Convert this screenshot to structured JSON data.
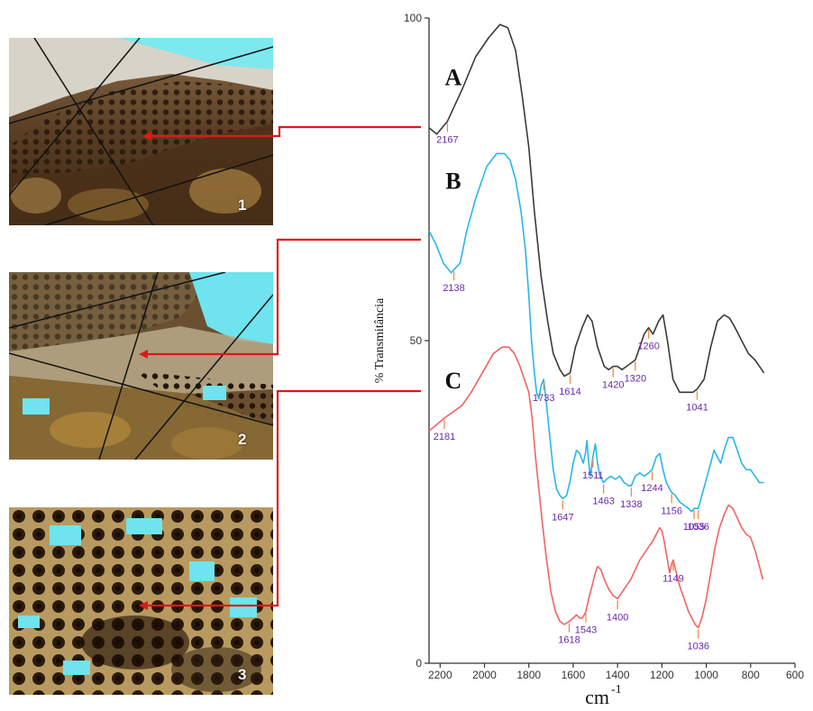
{
  "photos": [
    {
      "number": "1"
    },
    {
      "number": "2"
    },
    {
      "number": "3"
    }
  ],
  "chart_data": {
    "type": "line",
    "title": "",
    "xlabel": "cm",
    "xlabel_exponent": "-1",
    "ylabel": "% Transmitância",
    "xlim": [
      2250,
      600
    ],
    "ylim": [
      0,
      100
    ],
    "x_ticks": [
      2200,
      2000,
      1800,
      1600,
      1400,
      1200,
      1000,
      800,
      600
    ],
    "y_ticks": [
      0,
      50,
      100
    ],
    "grid": false,
    "legend": "none",
    "series": [
      {
        "name": "A",
        "color": "#3a3a3a",
        "points": [
          [
            2250,
            83
          ],
          [
            2215,
            82
          ],
          [
            2167,
            84
          ],
          [
            2100,
            89
          ],
          [
            2040,
            94
          ],
          [
            1980,
            97
          ],
          [
            1930,
            99
          ],
          [
            1895,
            98.5
          ],
          [
            1860,
            95
          ],
          [
            1830,
            88
          ],
          [
            1800,
            80
          ],
          [
            1775,
            70
          ],
          [
            1745,
            60
          ],
          [
            1715,
            53
          ],
          [
            1690,
            48
          ],
          [
            1660,
            45.5
          ],
          [
            1640,
            44.5
          ],
          [
            1614,
            45
          ],
          [
            1590,
            49
          ],
          [
            1560,
            52
          ],
          [
            1535,
            54
          ],
          [
            1515,
            53
          ],
          [
            1490,
            49
          ],
          [
            1460,
            46
          ],
          [
            1440,
            45.5
          ],
          [
            1420,
            46
          ],
          [
            1400,
            46
          ],
          [
            1380,
            45.5
          ],
          [
            1360,
            46
          ],
          [
            1320,
            47
          ],
          [
            1300,
            49
          ],
          [
            1280,
            51
          ],
          [
            1260,
            52
          ],
          [
            1240,
            51
          ],
          [
            1215,
            53
          ],
          [
            1195,
            54
          ],
          [
            1175,
            50
          ],
          [
            1150,
            44
          ],
          [
            1120,
            42
          ],
          [
            1090,
            42
          ],
          [
            1060,
            42
          ],
          [
            1041,
            42.5
          ],
          [
            1010,
            44
          ],
          [
            980,
            49
          ],
          [
            950,
            53
          ],
          [
            920,
            54
          ],
          [
            895,
            53.5
          ],
          [
            870,
            52
          ],
          [
            840,
            50
          ],
          [
            810,
            48
          ],
          [
            780,
            47
          ],
          [
            760,
            46
          ],
          [
            740,
            45
          ]
        ]
      },
      {
        "name": "B",
        "color": "#29b6e8",
        "points": [
          [
            2250,
            67
          ],
          [
            2220,
            65
          ],
          [
            2185,
            62
          ],
          [
            2150,
            60.5
          ],
          [
            2138,
            61
          ],
          [
            2110,
            62
          ],
          [
            2080,
            67
          ],
          [
            2040,
            72
          ],
          [
            1990,
            77
          ],
          [
            1945,
            79
          ],
          [
            1910,
            79
          ],
          [
            1885,
            78
          ],
          [
            1860,
            75
          ],
          [
            1835,
            70
          ],
          [
            1815,
            64
          ],
          [
            1800,
            57
          ],
          [
            1788,
            50
          ],
          [
            1775,
            45
          ],
          [
            1765,
            42
          ],
          [
            1755,
            41
          ],
          [
            1745,
            43
          ],
          [
            1733,
            44
          ],
          [
            1720,
            40
          ],
          [
            1705,
            35
          ],
          [
            1690,
            30
          ],
          [
            1675,
            27
          ],
          [
            1660,
            26
          ],
          [
            1647,
            25.5
          ],
          [
            1630,
            26
          ],
          [
            1615,
            28
          ],
          [
            1600,
            31
          ],
          [
            1585,
            33
          ],
          [
            1570,
            32.5
          ],
          [
            1555,
            31
          ],
          [
            1545,
            32.5
          ],
          [
            1538,
            34.5
          ],
          [
            1530,
            31
          ],
          [
            1522,
            29
          ],
          [
            1511,
            32
          ],
          [
            1500,
            34
          ],
          [
            1490,
            31
          ],
          [
            1480,
            29
          ],
          [
            1463,
            28
          ],
          [
            1450,
            28.5
          ],
          [
            1430,
            29
          ],
          [
            1410,
            28.5
          ],
          [
            1390,
            29
          ],
          [
            1370,
            28
          ],
          [
            1350,
            27.5
          ],
          [
            1338,
            27.5
          ],
          [
            1320,
            29
          ],
          [
            1300,
            29.5
          ],
          [
            1280,
            29
          ],
          [
            1260,
            29.5
          ],
          [
            1244,
            30
          ],
          [
            1225,
            32
          ],
          [
            1210,
            32.5
          ],
          [
            1195,
            30
          ],
          [
            1180,
            28
          ],
          [
            1165,
            27
          ],
          [
            1156,
            26.5
          ],
          [
            1140,
            26
          ],
          [
            1120,
            25
          ],
          [
            1100,
            24.5
          ],
          [
            1080,
            24
          ],
          [
            1065,
            23.5
          ],
          [
            1055,
            24
          ],
          [
            1045,
            24
          ],
          [
            1036,
            24
          ],
          [
            1020,
            26
          ],
          [
            1000,
            28.5
          ],
          [
            980,
            31
          ],
          [
            965,
            33
          ],
          [
            950,
            32
          ],
          [
            935,
            31
          ],
          [
            920,
            33
          ],
          [
            900,
            35
          ],
          [
            880,
            35
          ],
          [
            860,
            33
          ],
          [
            840,
            31
          ],
          [
            820,
            30
          ],
          [
            800,
            30
          ],
          [
            780,
            29
          ],
          [
            760,
            28
          ],
          [
            740,
            28
          ]
        ]
      },
      {
        "name": "C",
        "color": "#f06464",
        "points": [
          [
            2250,
            36
          ],
          [
            2215,
            37
          ],
          [
            2181,
            38
          ],
          [
            2140,
            39
          ],
          [
            2100,
            40
          ],
          [
            2060,
            42
          ],
          [
            2010,
            45
          ],
          [
            1960,
            48
          ],
          [
            1920,
            49
          ],
          [
            1890,
            49
          ],
          [
            1865,
            48
          ],
          [
            1840,
            46
          ],
          [
            1820,
            44
          ],
          [
            1800,
            42
          ],
          [
            1785,
            38
          ],
          [
            1770,
            32
          ],
          [
            1755,
            27
          ],
          [
            1740,
            22
          ],
          [
            1720,
            16
          ],
          [
            1700,
            11
          ],
          [
            1680,
            8
          ],
          [
            1660,
            6.5
          ],
          [
            1640,
            6
          ],
          [
            1618,
            6.5
          ],
          [
            1600,
            7
          ],
          [
            1585,
            7.5
          ],
          [
            1570,
            7
          ],
          [
            1560,
            7
          ],
          [
            1550,
            7.5
          ],
          [
            1543,
            8
          ],
          [
            1530,
            10
          ],
          [
            1515,
            12
          ],
          [
            1500,
            14
          ],
          [
            1490,
            15
          ],
          [
            1475,
            14.5
          ],
          [
            1460,
            13
          ],
          [
            1440,
            11.5
          ],
          [
            1420,
            10.5
          ],
          [
            1400,
            10
          ],
          [
            1380,
            11
          ],
          [
            1360,
            12
          ],
          [
            1340,
            13
          ],
          [
            1320,
            14.5
          ],
          [
            1300,
            16
          ],
          [
            1280,
            17
          ],
          [
            1260,
            18
          ],
          [
            1240,
            19
          ],
          [
            1225,
            20
          ],
          [
            1210,
            21
          ],
          [
            1200,
            20.5
          ],
          [
            1190,
            19
          ],
          [
            1175,
            16
          ],
          [
            1165,
            14
          ],
          [
            1155,
            15.5
          ],
          [
            1149,
            16
          ],
          [
            1135,
            14
          ],
          [
            1120,
            12
          ],
          [
            1100,
            10
          ],
          [
            1080,
            8
          ],
          [
            1065,
            7
          ],
          [
            1050,
            6
          ],
          [
            1036,
            5.5
          ],
          [
            1020,
            7
          ],
          [
            1000,
            10
          ],
          [
            980,
            14
          ],
          [
            960,
            18
          ],
          [
            940,
            21
          ],
          [
            920,
            23
          ],
          [
            900,
            24.5
          ],
          [
            880,
            24
          ],
          [
            860,
            22.5
          ],
          [
            840,
            21
          ],
          [
            820,
            20
          ],
          [
            800,
            19.5
          ],
          [
            780,
            17.5
          ],
          [
            760,
            15
          ],
          [
            745,
            13
          ]
        ]
      }
    ],
    "series_labels": [
      {
        "text": "A",
        "series": "A"
      },
      {
        "text": "B",
        "series": "B"
      },
      {
        "text": "C",
        "series": "C"
      }
    ],
    "annotations": [
      {
        "text": "2167",
        "x": 2167,
        "y": 84,
        "series": "A"
      },
      {
        "text": "1614",
        "x": 1614,
        "y": 45,
        "series": "A"
      },
      {
        "text": "1420",
        "x": 1420,
        "y": 46,
        "series": "A"
      },
      {
        "text": "1320",
        "x": 1320,
        "y": 47,
        "series": "A"
      },
      {
        "text": "1260",
        "x": 1260,
        "y": 52,
        "series": "A"
      },
      {
        "text": "1041",
        "x": 1041,
        "y": 42.5,
        "series": "A"
      },
      {
        "text": "2138",
        "x": 2138,
        "y": 61,
        "series": "B"
      },
      {
        "text": "1733",
        "x": 1733,
        "y": 44,
        "series": "B"
      },
      {
        "text": "1647",
        "x": 1647,
        "y": 25.5,
        "series": "B"
      },
      {
        "text": "1511",
        "x": 1511,
        "y": 32,
        "series": "B"
      },
      {
        "text": "1463",
        "x": 1463,
        "y": 28,
        "series": "B"
      },
      {
        "text": "1338",
        "x": 1338,
        "y": 27.5,
        "series": "B"
      },
      {
        "text": "1244",
        "x": 1244,
        "y": 30,
        "series": "B"
      },
      {
        "text": "1156",
        "x": 1156,
        "y": 26.5,
        "series": "B"
      },
      {
        "text": "1055",
        "x": 1055,
        "y": 24,
        "series": "B"
      },
      {
        "text": "1036",
        "x": 1036,
        "y": 24,
        "series": "B"
      },
      {
        "text": "2181",
        "x": 2181,
        "y": 38,
        "series": "C"
      },
      {
        "text": "1618",
        "x": 1618,
        "y": 6.5,
        "series": "C"
      },
      {
        "text": "1543",
        "x": 1543,
        "y": 8,
        "series": "C"
      },
      {
        "text": "1400",
        "x": 1400,
        "y": 10,
        "series": "C"
      },
      {
        "text": "1149",
        "x": 1149,
        "y": 16,
        "series": "C"
      },
      {
        "text": "1036",
        "x": 1036,
        "y": 5.5,
        "series": "C"
      }
    ],
    "arrow_color": "#e01818"
  }
}
